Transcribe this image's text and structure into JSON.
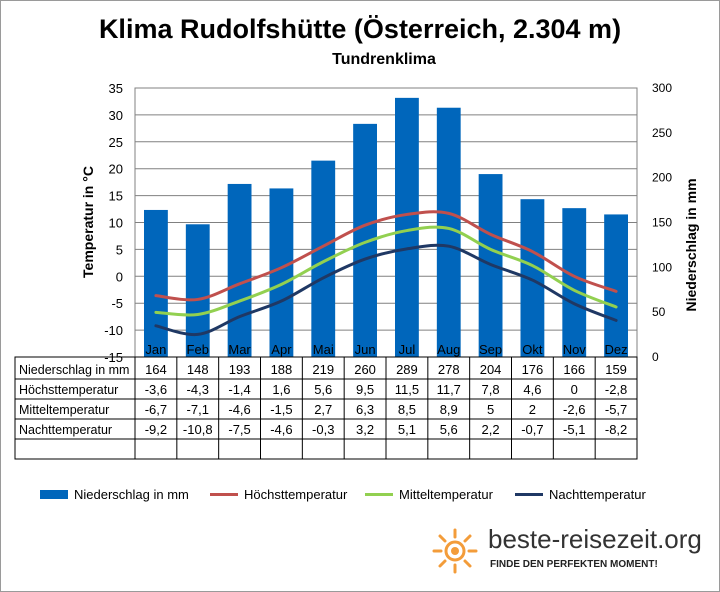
{
  "title": "Klima Rudolfshütte (Österreich, 2.304 m)",
  "subtitle": "Tundrenklima",
  "brand": {
    "name": "beste-reisezeit.org",
    "tagline": "FINDE DEN PERFEKTEN MOMENT!"
  },
  "chart_data": {
    "type": "bar",
    "categories": [
      "Jan",
      "Feb",
      "Mar",
      "Apr",
      "Mai",
      "Jun",
      "Jul",
      "Aug",
      "Sep",
      "Okt",
      "Nov",
      "Dez"
    ],
    "ylabel": "Temperatur in °C",
    "y2label": "Niederschlag in mm",
    "ylim": [
      -15,
      35
    ],
    "y2lim": [
      0,
      300
    ],
    "yticks": [
      "35",
      "30",
      "25",
      "20",
      "15",
      "10",
      "5",
      "0",
      "-5",
      "-10",
      "-15"
    ],
    "y2ticks": [
      "300",
      "250",
      "200",
      "150",
      "100",
      "50",
      "0"
    ],
    "grid": true,
    "legend_position": "bottom",
    "series": [
      {
        "name": "Niederschlag in mm",
        "type": "bar",
        "axis": "right",
        "color": "#0066bb",
        "values": [
          164,
          148,
          193,
          188,
          219,
          260,
          289,
          278,
          204,
          176,
          166,
          159
        ],
        "labels": [
          "164",
          "148",
          "193",
          "188",
          "219",
          "260",
          "289",
          "278",
          "204",
          "176",
          "166",
          "159"
        ]
      },
      {
        "name": "Höchsttemperatur",
        "type": "line",
        "axis": "left",
        "color": "#c0504d",
        "values": [
          -3.6,
          -4.3,
          -1.4,
          1.6,
          5.6,
          9.5,
          11.5,
          11.7,
          7.8,
          4.6,
          0,
          -2.8
        ],
        "labels": [
          "-3,6",
          "-4,3",
          "-1,4",
          "1,6",
          "5,6",
          "9,5",
          "11,5",
          "11,7",
          "7,8",
          "4,6",
          "0",
          "-2,8"
        ]
      },
      {
        "name": "Mitteltemperatur",
        "type": "line",
        "axis": "left",
        "color": "#92d050",
        "values": [
          -6.7,
          -7.1,
          -4.6,
          -1.5,
          2.7,
          6.3,
          8.5,
          8.9,
          5,
          2,
          -2.6,
          -5.7
        ],
        "labels": [
          "-6,7",
          "-7,1",
          "-4,6",
          "-1,5",
          "2,7",
          "6,3",
          "8,5",
          "8,9",
          "5",
          "2",
          "-2,6",
          "-5,7"
        ]
      },
      {
        "name": "Nachttemperatur",
        "type": "line",
        "axis": "left",
        "color": "#1f3864",
        "values": [
          -9.2,
          -10.8,
          -7.5,
          -4.6,
          -0.3,
          3.2,
          5.1,
          5.6,
          2.2,
          -0.7,
          -5.1,
          -8.2
        ],
        "labels": [
          "-9,2",
          "-10,8",
          "-7,5",
          "-4,6",
          "-0,3",
          "3,2",
          "5,1",
          "5,6",
          "2,2",
          "-0,7",
          "-5,1",
          "-8,2"
        ]
      }
    ]
  }
}
